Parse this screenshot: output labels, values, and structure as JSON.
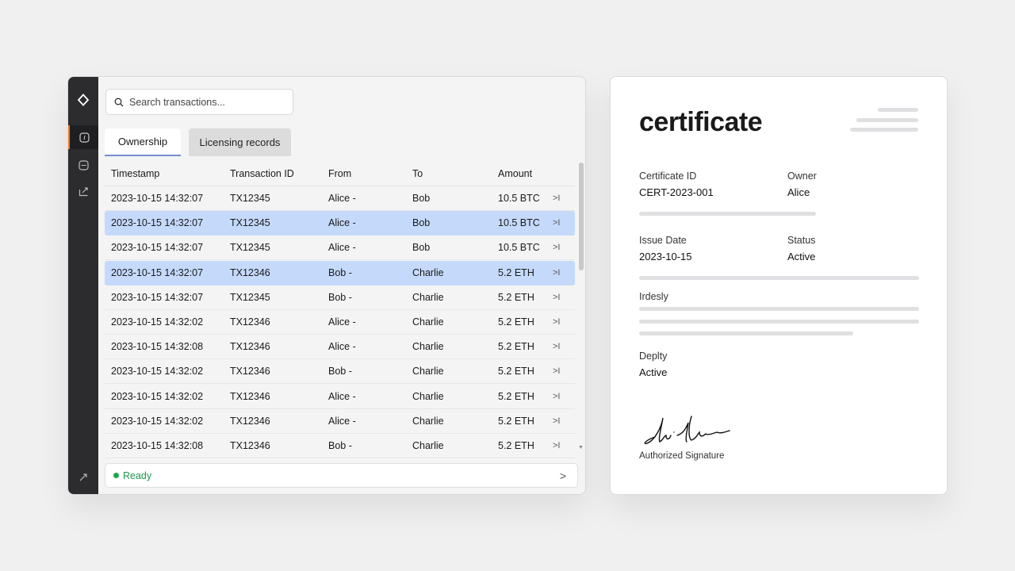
{
  "search": {
    "placeholder": "Search transactions..."
  },
  "sidebar": {
    "items": [
      {
        "icon": "diamond-logo-icon"
      },
      {
        "icon": "compass-icon",
        "active": true
      },
      {
        "icon": "calendar-icon"
      },
      {
        "icon": "export-icon"
      },
      {
        "icon": "expand-icon"
      }
    ],
    "accent": "#f07a2a"
  },
  "tabs": [
    {
      "label": "Ownership",
      "active": true
    },
    {
      "label": "Licensing records"
    }
  ],
  "table": {
    "columns": [
      "Timestamp",
      "Transaction ID",
      "From",
      "To",
      "Amount"
    ],
    "rows": [
      {
        "timestamp": "2023-10-15 14:32:07",
        "id": "TX12345",
        "from": "Alice -",
        "to": "Bob",
        "amount": "10.5 BTC",
        "action": ">I",
        "selected": false
      },
      {
        "timestamp": "2023-10-15 14:32:07",
        "id": "TX12345",
        "from": "Alice -",
        "to": "Bob",
        "amount": "10.5 BTC",
        "action": ">I",
        "selected": true
      },
      {
        "timestamp": "2023-10-15 14:32:07",
        "id": "TX12345",
        "from": "Alice -",
        "to": "Bob",
        "amount": "10.5 BTC",
        "action": ">I",
        "selected": false
      },
      {
        "timestamp": "2023-10-15 14:32:07",
        "id": "TX12346",
        "from": "Bob -",
        "to": "Charlie",
        "amount": "5.2 ETH",
        "action": ">I",
        "selected": true
      },
      {
        "timestamp": "2023-10-15 14:32:07",
        "id": "TX12345",
        "from": "Bob -",
        "to": "Charlie",
        "amount": "5.2 ETH",
        "action": ">I",
        "selected": false
      },
      {
        "timestamp": "2023-10-15 14:32:02",
        "id": "TX12346",
        "from": "Alice -",
        "to": "Charlie",
        "amount": "5.2 ETH",
        "action": ">I",
        "selected": false
      },
      {
        "timestamp": "2023-10-15 14:32:08",
        "id": "TX12346",
        "from": "Alice -",
        "to": "Charlie",
        "amount": "5.2 ETH",
        "action": ">I",
        "selected": false
      },
      {
        "timestamp": "2023-10-15 14:32:02",
        "id": "TX12346",
        "from": "Bob -",
        "to": "Charlie",
        "amount": "5.2 ETH",
        "action": ">I",
        "selected": false
      },
      {
        "timestamp": "2023-10-15 14:32:02",
        "id": "TX12346",
        "from": "Alice -",
        "to": "Charlie",
        "amount": "5.2 ETH",
        "action": ">I",
        "selected": false
      },
      {
        "timestamp": "2023-10-15 14:32:02",
        "id": "TX12346",
        "from": "Alice -",
        "to": "Charlie",
        "amount": "5.2 ETH",
        "action": ">I",
        "selected": false
      },
      {
        "timestamp": "2023-10-15 14:32:08",
        "id": "TX12346",
        "from": "Bob -",
        "to": "Charlie",
        "amount": "5.2 ETH",
        "action": ">I",
        "selected": false
      }
    ],
    "selected_color": "#c5d9fb"
  },
  "status": {
    "text": "Ready",
    "color": "#22a34f",
    "chevron": ">"
  },
  "certificate": {
    "title": "certificate",
    "certificate_id_label": "Certificate ID",
    "certificate_id": "CERT-2023-001",
    "owner_label": "Owner",
    "owner": "Alice",
    "issue_date_label": "Issue Date",
    "issue_date": "2023-10-15",
    "status_label": "Status",
    "status": "Active",
    "section_label": "Irdesly",
    "deputy_label": "Deplty",
    "deputy": "Active",
    "signature_caption": "Authorized Signature"
  }
}
